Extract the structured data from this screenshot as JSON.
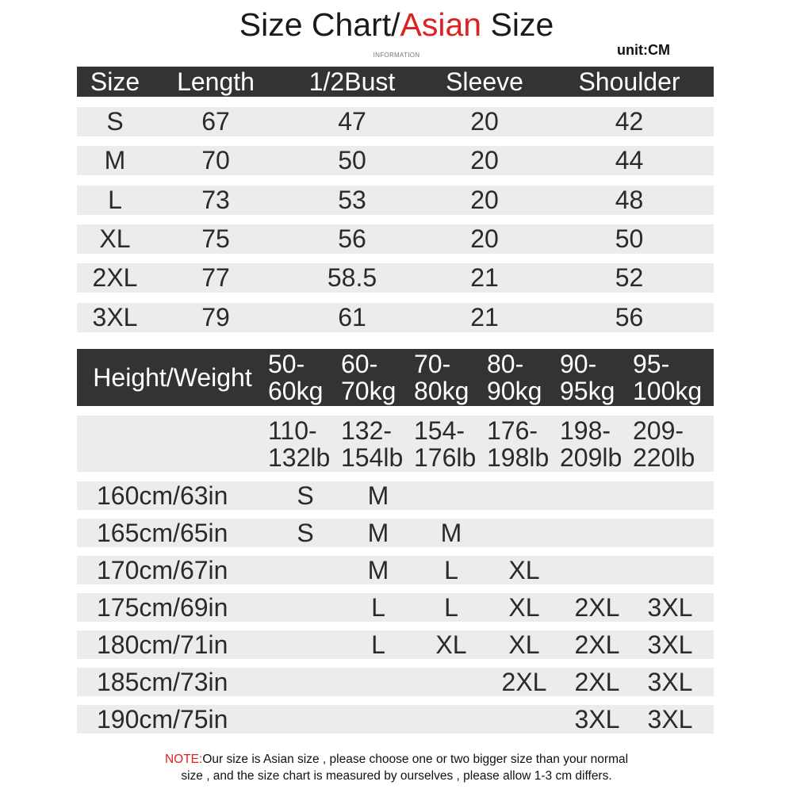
{
  "title": {
    "prefix": "Size Chart/",
    "accent": "Asian",
    "suffix": " Size"
  },
  "subtitle": "INFORMATION",
  "unit": "unit:CM",
  "accent_color": "#e02020",
  "header_bg": "#333333",
  "row_bg": "#ececec",
  "size_table": {
    "headers": [
      "Size",
      "Length",
      "1/2Bust",
      "Sleeve",
      "Shoulder"
    ],
    "rows": [
      [
        "S",
        "67",
        "47",
        "20",
        "42"
      ],
      [
        "M",
        "70",
        "50",
        "20",
        "44"
      ],
      [
        "L",
        "73",
        "53",
        "20",
        "48"
      ],
      [
        "XL",
        "75",
        "56",
        "20",
        "50"
      ],
      [
        "2XL",
        "77",
        "58.5",
        "21",
        "52"
      ],
      [
        "3XL",
        "79",
        "61",
        "21",
        "56"
      ]
    ]
  },
  "fit_table": {
    "corner": "Height/Weight",
    "kg": [
      [
        "50-",
        "60kg"
      ],
      [
        "60-",
        "70kg"
      ],
      [
        "70-",
        "80kg"
      ],
      [
        "80-",
        "90kg"
      ],
      [
        "90-",
        "95kg"
      ],
      [
        "95-",
        "100kg"
      ]
    ],
    "lb": [
      [
        "110-",
        "132lb"
      ],
      [
        "132-",
        "154lb"
      ],
      [
        "154-",
        "176lb"
      ],
      [
        "176-",
        "198lb"
      ],
      [
        "198-",
        "209lb"
      ],
      [
        "209-",
        "220lb"
      ]
    ],
    "rows": [
      {
        "height": "160cm/63in",
        "sizes": [
          "S",
          "M",
          "",
          "",
          "",
          ""
        ]
      },
      {
        "height": "165cm/65in",
        "sizes": [
          "S",
          "M",
          "M",
          "",
          "",
          ""
        ]
      },
      {
        "height": "170cm/67in",
        "sizes": [
          "",
          "M",
          "L",
          "XL",
          "",
          ""
        ]
      },
      {
        "height": "175cm/69in",
        "sizes": [
          "",
          "L",
          "L",
          "XL",
          "2XL",
          "3XL"
        ]
      },
      {
        "height": "180cm/71in",
        "sizes": [
          "",
          "L",
          "XL",
          "XL",
          "2XL",
          "3XL"
        ]
      },
      {
        "height": "185cm/73in",
        "sizes": [
          "",
          "",
          "",
          "2XL",
          "2XL",
          "3XL"
        ]
      },
      {
        "height": "190cm/75in",
        "sizes": [
          "",
          "",
          "",
          "",
          "3XL",
          "3XL"
        ]
      }
    ]
  },
  "note": {
    "label": "NOTE:",
    "line1": "Our size is Asian size , please choose one or two bigger size than your normal",
    "line2": "size , and the size chart is measured by ourselves , please allow 1-3 cm differs."
  }
}
